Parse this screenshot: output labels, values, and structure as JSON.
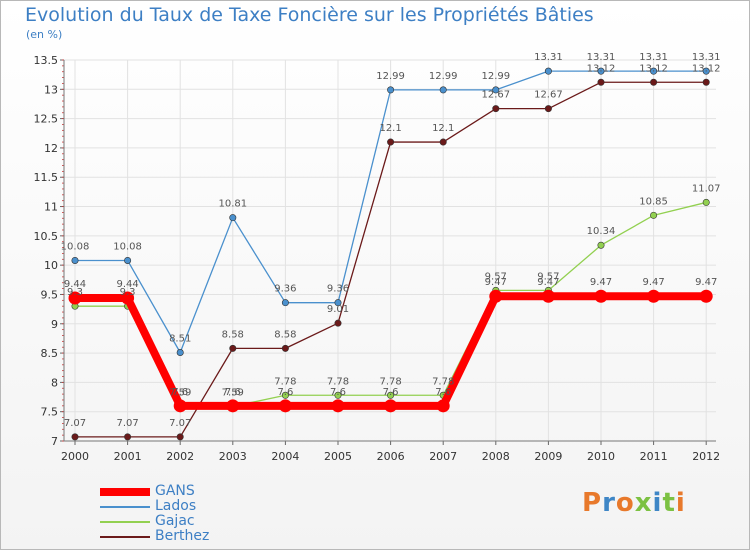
{
  "title": "Evolution du Taux de Taxe Foncière sur les Propriétés Bâties",
  "subtitle": "(en %)",
  "brand": {
    "logo_letters": [
      "P",
      "r",
      "o",
      "x",
      "i",
      "t",
      "i"
    ],
    "logo_colors": [
      "#e8792b",
      "#3e86c6",
      "#e8792b",
      "#7cc142",
      "#3e86c6",
      "#7cc142",
      "#e8792b"
    ]
  },
  "chart_data": {
    "type": "line",
    "title": "Evolution du Taux de Taxe Foncière sur les Propriétés Bâties",
    "ylabel": "(en %)",
    "xlabel": "",
    "x": [
      "2000",
      "2001",
      "2002",
      "2003",
      "2004",
      "2005",
      "2006",
      "2007",
      "2008",
      "2009",
      "2010",
      "2011",
      "2012"
    ],
    "ylim": [
      7,
      13.5
    ],
    "yticks": [
      "7",
      "7.5",
      "8",
      "8.5",
      "9",
      "9.5",
      "10",
      "10.5",
      "11",
      "11.5",
      "12",
      "12.5",
      "13",
      "13.5"
    ],
    "legend_position": "bottom-left",
    "series": [
      {
        "name": "Berthez",
        "color": "#6b1a1a",
        "values": [
          7.07,
          7.07,
          7.07,
          8.58,
          8.58,
          9.01,
          12.1,
          12.1,
          12.67,
          12.67,
          13.12,
          13.12,
          13.12
        ],
        "labels": [
          "7.07",
          "7.07",
          "7.07",
          "8.58",
          "8.58",
          "9.01",
          "12.1",
          "12.1",
          "12.67",
          "12.67",
          "13.12",
          "13.12",
          "13.12"
        ]
      },
      {
        "name": "Gajac",
        "color": "#92d050",
        "values": [
          9.3,
          9.3,
          7.59,
          7.59,
          7.78,
          7.78,
          7.78,
          7.78,
          9.57,
          9.57,
          10.34,
          10.85,
          11.07
        ],
        "labels": [
          "9.3",
          "9.3",
          "7.59",
          "7.59",
          "7.78",
          "7.78",
          "7.78",
          "7.78",
          "9.57",
          "9.57",
          "10.34",
          "10.85",
          "11.07"
        ]
      },
      {
        "name": "Lados",
        "color": "#4a90cd",
        "values": [
          10.08,
          10.08,
          8.51,
          10.81,
          9.36,
          9.36,
          12.99,
          12.99,
          12.99,
          13.31,
          13.31,
          13.31,
          13.31
        ],
        "labels": [
          "10.08",
          "10.08",
          "8.51",
          "10.81",
          "9.36",
          "9.36",
          "12.99",
          "12.99",
          "12.99",
          "13.31",
          "13.31",
          "13.31",
          "13.31"
        ]
      },
      {
        "name": "GANS",
        "color": "#ff0000",
        "values": [
          9.44,
          9.44,
          7.6,
          7.6,
          7.6,
          7.6,
          7.6,
          7.6,
          9.47,
          9.47,
          9.47,
          9.47,
          9.47
        ],
        "labels": [
          "9.44",
          "9.44",
          "7.6",
          "7.6",
          "7.6",
          "7.6",
          "7.6",
          "7.6",
          "9.47",
          "9.47",
          "9.47",
          "9.47",
          "9.47"
        ]
      }
    ]
  }
}
